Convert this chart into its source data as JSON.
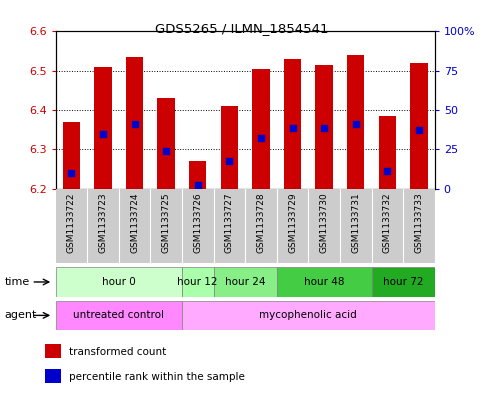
{
  "title": "GDS5265 / ILMN_1854541",
  "samples": [
    "GSM1133722",
    "GSM1133723",
    "GSM1133724",
    "GSM1133725",
    "GSM1133726",
    "GSM1133727",
    "GSM1133728",
    "GSM1133729",
    "GSM1133730",
    "GSM1133731",
    "GSM1133732",
    "GSM1133733"
  ],
  "bar_tops": [
    6.37,
    6.51,
    6.535,
    6.43,
    6.27,
    6.41,
    6.505,
    6.53,
    6.515,
    6.54,
    6.385,
    6.52
  ],
  "bar_base": 6.2,
  "blue_dots": [
    6.24,
    6.34,
    6.365,
    6.295,
    6.21,
    6.27,
    6.33,
    6.355,
    6.355,
    6.365,
    6.245,
    6.35
  ],
  "ylim": [
    6.2,
    6.6
  ],
  "yticks_left": [
    6.2,
    6.3,
    6.4,
    6.5,
    6.6
  ],
  "yticks_right": [
    0,
    25,
    50,
    75,
    100
  ],
  "ylabel_left_color": "#cc0000",
  "ylabel_right_color": "#0000cc",
  "bar_color": "#cc0000",
  "dot_color": "#0000cc",
  "dot_size": 18,
  "bar_width": 0.55,
  "time_groups": [
    {
      "label": "hour 0",
      "cols": [
        0,
        1,
        2,
        3
      ]
    },
    {
      "label": "hour 12",
      "cols": [
        4
      ]
    },
    {
      "label": "hour 24",
      "cols": [
        5,
        6
      ]
    },
    {
      "label": "hour 48",
      "cols": [
        7,
        8,
        9
      ]
    },
    {
      "label": "hour 72",
      "cols": [
        10,
        11
      ]
    }
  ],
  "time_colors": [
    "#ccffcc",
    "#aaffaa",
    "#88ee88",
    "#44cc44",
    "#22aa22"
  ],
  "agent_groups": [
    {
      "label": "untreated control",
      "cols": [
        0,
        1,
        2,
        3
      ]
    },
    {
      "label": "mycophenolic acid",
      "cols": [
        4,
        5,
        6,
        7,
        8,
        9,
        10,
        11
      ]
    }
  ],
  "agent_colors": [
    "#ff88ff",
    "#ffaaff"
  ],
  "legend_red_label": "transformed count",
  "legend_blue_label": "percentile rank within the sample",
  "xlabel_bg": "#cccccc",
  "plot_bg": "#ffffff"
}
